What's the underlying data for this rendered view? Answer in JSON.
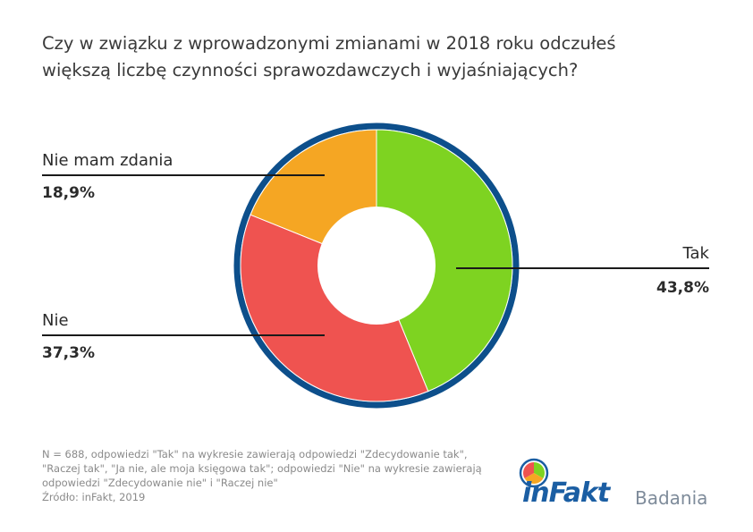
{
  "title_lines": [
    "Czy w związku z wprowadzonymi zmianami w 2018 roku odczułeś",
    "większą liczbę czynności sprawozdawczych i wyjaśniających?"
  ],
  "chart_data": {
    "type": "pie",
    "categories": [
      "Tak",
      "Nie",
      "Nie mam zdania"
    ],
    "values": [
      43.8,
      37.3,
      18.9
    ],
    "value_labels": [
      "43,8%",
      "37,3%",
      "18,9%"
    ],
    "colors": [
      "#7ed321",
      "#ef5350",
      "#f5a623"
    ],
    "ring_color": "#0d4f8b",
    "hole": "donut"
  },
  "footnote": "N = 688, odpowiedzi \"Tak\" na wykresie zawierają odpowiedzi \"Zdecydowanie tak\", \"Raczej tak\", \"Ja nie, ale moja księgowa tak\"; odpowiedzi \"Nie\" na wykresie zawierają odpowiedzi \"Zdecydowanie nie\" i \"Raczej nie\"",
  "source": "Źródło: inFakt, 2019",
  "logo": {
    "wordmark": "inFakt",
    "subtitle": "Badania",
    "colors": [
      "#7ed321",
      "#f5a623",
      "#ef5350",
      "#1b5ea3"
    ]
  }
}
